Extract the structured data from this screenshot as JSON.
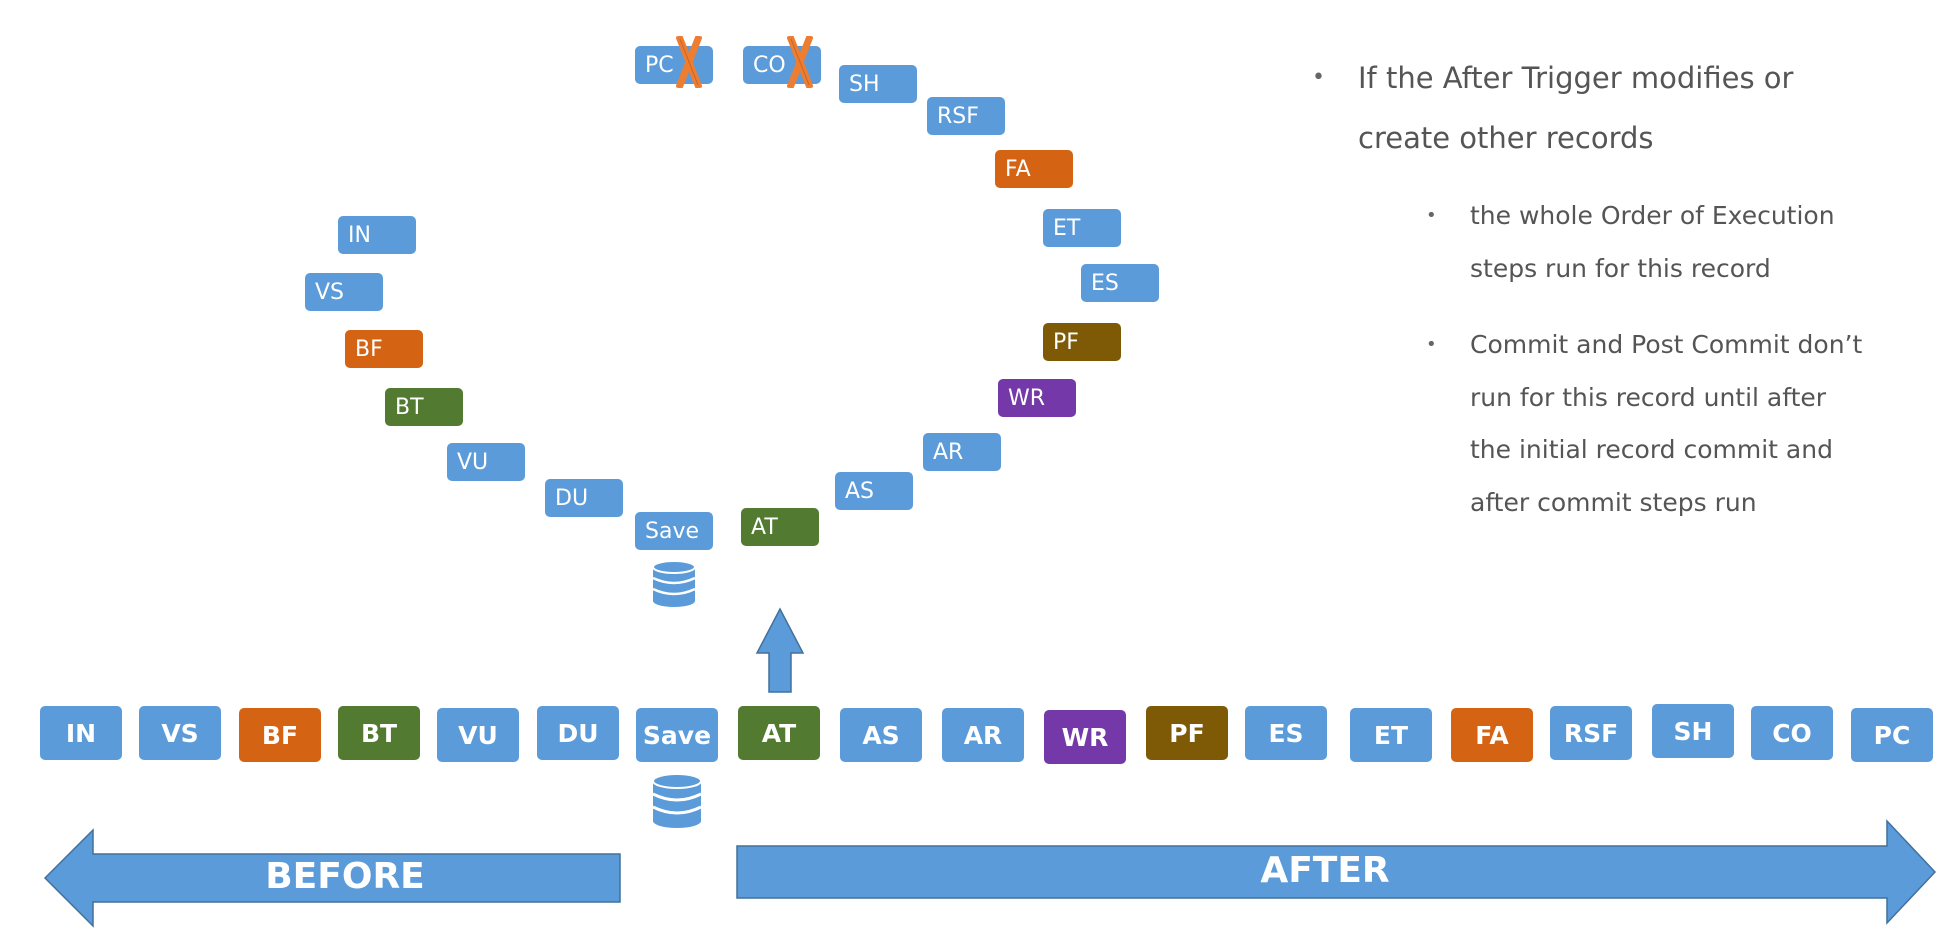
{
  "loop_steps": {
    "in": "IN",
    "vs": "VS",
    "bf": "BF",
    "bt": "BT",
    "vu": "VU",
    "du": "DU",
    "save": "Save",
    "at": "AT",
    "as": "AS",
    "ar": "AR",
    "wr": "WR",
    "pf": "PF",
    "es": "ES",
    "et": "ET",
    "fa": "FA",
    "rsf": "RSF",
    "sh": "SH",
    "co": "CO",
    "pc": "PC"
  },
  "timeline_steps": [
    "IN",
    "VS",
    "BF",
    "BT",
    "VU",
    "DU",
    "Save",
    "AT",
    "AS",
    "AR",
    "WR",
    "PF",
    "ES",
    "ET",
    "FA",
    "RSF",
    "SH",
    "CO",
    "PC"
  ],
  "before_label": "BEFORE",
  "after_label": "AFTER",
  "bullets": {
    "main": "If the After Trigger modifies or create other records",
    "sub1": "the whole Order of Execution steps run for this record",
    "sub2": "Commit and Post Commit don’t run for this record until after the initial record commit and after commit steps run"
  },
  "colors": {
    "blue": "#5b9bd9",
    "orange": "#d46413",
    "green": "#527a31",
    "purple": "#7438a8",
    "brown": "#7e5a06",
    "cross": "#ed7d31"
  }
}
